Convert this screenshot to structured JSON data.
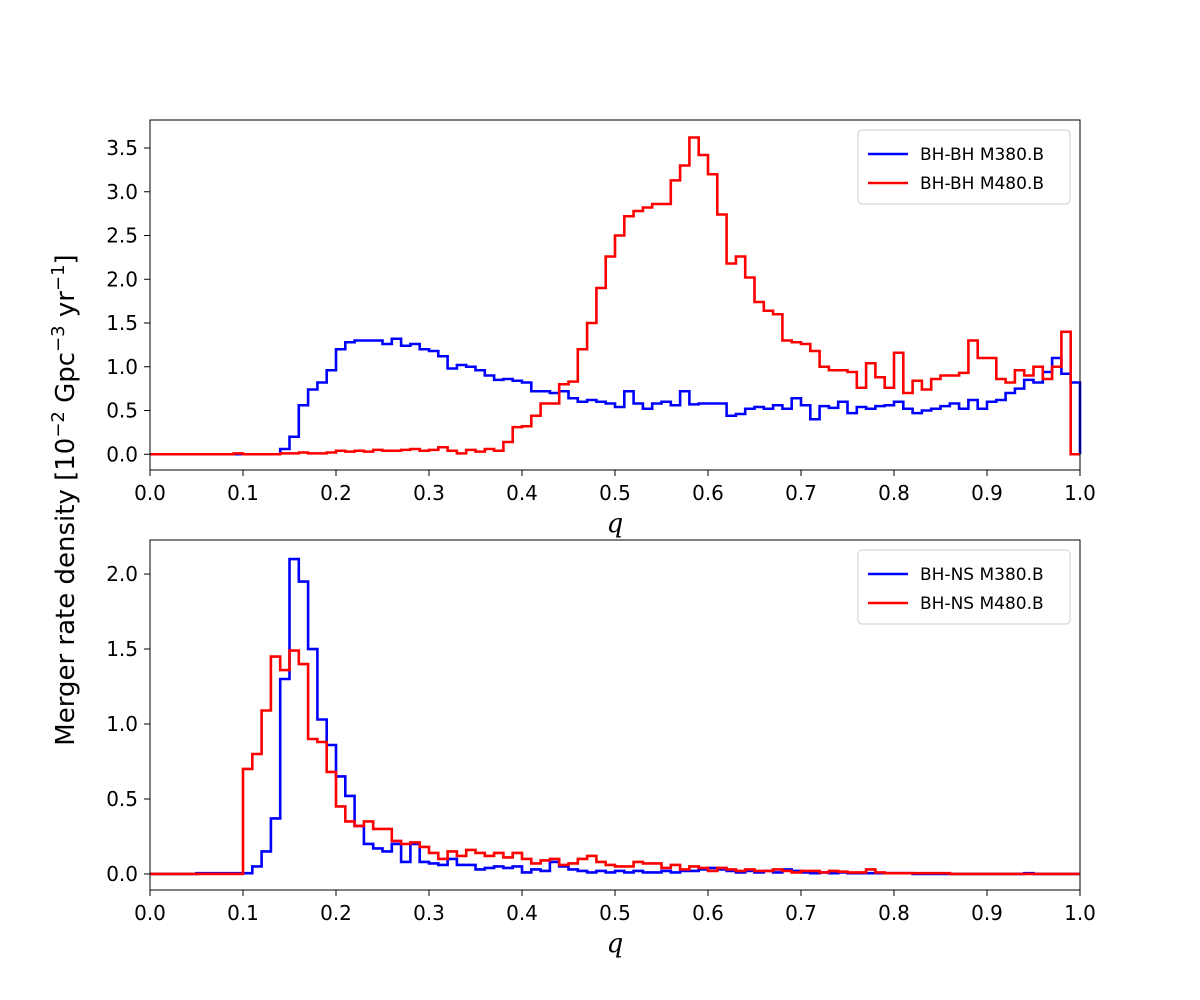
{
  "ylabel": {
    "main": "Merger rate density [10",
    "exp1": "−2",
    "mid": " Gpc",
    "exp2": "−3",
    "yr": " yr",
    "exp3": "−1",
    "close": "]"
  },
  "chart_data": [
    {
      "type": "line",
      "xlabel": "q",
      "xlim": [
        0.0,
        1.0
      ],
      "ylim": [
        -0.18,
        3.82
      ],
      "xticks": [
        "0.0",
        "0.1",
        "0.2",
        "0.3",
        "0.4",
        "0.5",
        "0.6",
        "0.7",
        "0.8",
        "0.9",
        "1.0"
      ],
      "yticks": [
        "0.0",
        "0.5",
        "1.0",
        "1.5",
        "2.0",
        "2.5",
        "3.0",
        "3.5"
      ],
      "legend_position": "top-right",
      "series": [
        {
          "name": "BH-BH M380.B",
          "color": "#0000ff",
          "values": [
            0,
            0,
            0,
            0,
            0,
            0,
            0,
            0,
            0,
            0,
            0,
            0,
            0,
            0,
            0.06,
            0.2,
            0.56,
            0.74,
            0.82,
            0.96,
            1.2,
            1.28,
            1.3,
            1.3,
            1.3,
            1.26,
            1.32,
            1.24,
            1.26,
            1.2,
            1.18,
            1.12,
            0.98,
            1.02,
            1.0,
            0.96,
            0.9,
            0.85,
            0.86,
            0.84,
            0.82,
            0.72,
            0.72,
            0.7,
            0.72,
            0.64,
            0.6,
            0.62,
            0.6,
            0.58,
            0.54,
            0.72,
            0.58,
            0.52,
            0.58,
            0.6,
            0.56,
            0.72,
            0.57,
            0.58,
            0.58,
            0.58,
            0.44,
            0.46,
            0.52,
            0.54,
            0.52,
            0.56,
            0.52,
            0.64,
            0.56,
            0.4,
            0.55,
            0.53,
            0.6,
            0.47,
            0.54,
            0.52,
            0.55,
            0.56,
            0.6,
            0.52,
            0.47,
            0.5,
            0.52,
            0.55,
            0.58,
            0.52,
            0.62,
            0.52,
            0.6,
            0.62,
            0.7,
            0.75,
            0.85,
            0.82,
            0.94,
            1.1,
            0.92,
            0.82
          ]
        },
        {
          "name": "BH-BH M480.B",
          "color": "#ff0000",
          "values": [
            0,
            0,
            0,
            0,
            0,
            0,
            0,
            0,
            0,
            0.01,
            0,
            0,
            0,
            0,
            0.01,
            0.01,
            0.02,
            0.01,
            0.01,
            0.02,
            0.04,
            0.03,
            0.04,
            0.03,
            0.05,
            0.04,
            0.04,
            0.05,
            0.06,
            0.04,
            0.05,
            0.08,
            0.04,
            0.01,
            0.05,
            0.03,
            0.06,
            0.04,
            0.14,
            0.31,
            0.32,
            0.44,
            0.58,
            0.58,
            0.8,
            0.83,
            1.2,
            1.5,
            1.9,
            2.26,
            2.5,
            2.72,
            2.78,
            2.82,
            2.86,
            2.86,
            3.13,
            3.3,
            3.62,
            3.42,
            3.2,
            2.74,
            2.18,
            2.26,
            2.02,
            1.74,
            1.64,
            1.6,
            1.3,
            1.28,
            1.26,
            1.18,
            1.0,
            0.96,
            0.96,
            0.94,
            0.76,
            1.04,
            0.88,
            0.76,
            1.16,
            0.7,
            0.84,
            0.74,
            0.86,
            0.9,
            0.9,
            0.93,
            1.3,
            1.1,
            1.1,
            0.86,
            0.82,
            0.96,
            0.9,
            1.0,
            0.86,
            1.0,
            1.4,
            0
          ]
        }
      ]
    },
    {
      "type": "line",
      "xlabel": "q",
      "xlim": [
        0.0,
        1.0
      ],
      "ylim": [
        -0.107,
        2.227
      ],
      "xticks": [
        "0.0",
        "0.1",
        "0.2",
        "0.3",
        "0.4",
        "0.5",
        "0.6",
        "0.7",
        "0.8",
        "0.9",
        "1.0"
      ],
      "yticks": [
        "0.0",
        "0.5",
        "1.0",
        "1.5",
        "2.0"
      ],
      "legend_position": "top-right",
      "series": [
        {
          "name": "BH-NS M380.B",
          "color": "#0000ff",
          "values": [
            0,
            0,
            0,
            0,
            0,
            0.005,
            0.005,
            0.005,
            0.005,
            0.005,
            0.005,
            0.05,
            0.15,
            0.37,
            1.3,
            2.1,
            1.95,
            1.5,
            1.03,
            0.86,
            0.65,
            0.52,
            0.32,
            0.2,
            0.17,
            0.15,
            0.2,
            0.08,
            0.2,
            0.08,
            0.07,
            0.06,
            0.1,
            0.06,
            0.06,
            0.03,
            0.04,
            0.05,
            0.04,
            0.05,
            0.01,
            0.03,
            0.02,
            0.08,
            0.05,
            0.03,
            0.02,
            0.01,
            0.02,
            0.01,
            0.02,
            0.01,
            0.02,
            0.01,
            0.01,
            0.02,
            0.01,
            0.02,
            0.02,
            0.03,
            0.04,
            0.03,
            0.02,
            0.01,
            0.02,
            0.01,
            0.02,
            0.01,
            0.03,
            0.02,
            0.01,
            0.005,
            0.01,
            0.005,
            0.01,
            0.005,
            0.005,
            0.005,
            0.005,
            0.005,
            0.005,
            0.005,
            0,
            0,
            0,
            0,
            0,
            0,
            0,
            0,
            0,
            0,
            0,
            0,
            0.005,
            0,
            0,
            0,
            0,
            0
          ]
        },
        {
          "name": "BH-NS M480.B",
          "color": "#ff0000",
          "values": [
            0,
            0,
            0,
            0,
            0,
            0,
            0,
            0,
            0,
            0,
            0.7,
            0.8,
            1.09,
            1.45,
            1.36,
            1.49,
            1.4,
            0.9,
            0.88,
            0.68,
            0.45,
            0.35,
            0.32,
            0.35,
            0.3,
            0.3,
            0.22,
            0.2,
            0.21,
            0.18,
            0.14,
            0.1,
            0.15,
            0.12,
            0.16,
            0.14,
            0.12,
            0.14,
            0.11,
            0.14,
            0.1,
            0.07,
            0.09,
            0.1,
            0.06,
            0.07,
            0.1,
            0.12,
            0.08,
            0.06,
            0.05,
            0.05,
            0.08,
            0.07,
            0.07,
            0.04,
            0.06,
            0.03,
            0.05,
            0.04,
            0.02,
            0.04,
            0.03,
            0.02,
            0.03,
            0.02,
            0.02,
            0.03,
            0.02,
            0.01,
            0.02,
            0.02,
            0.01,
            0.02,
            0.015,
            0.01,
            0.01,
            0.03,
            0.01,
            0.005,
            0.005,
            0.005,
            0.005,
            0.005,
            0.005,
            0.005,
            0,
            0,
            0,
            0,
            0,
            0,
            0,
            0,
            0,
            0,
            0,
            0,
            0,
            0
          ]
        }
      ]
    }
  ]
}
